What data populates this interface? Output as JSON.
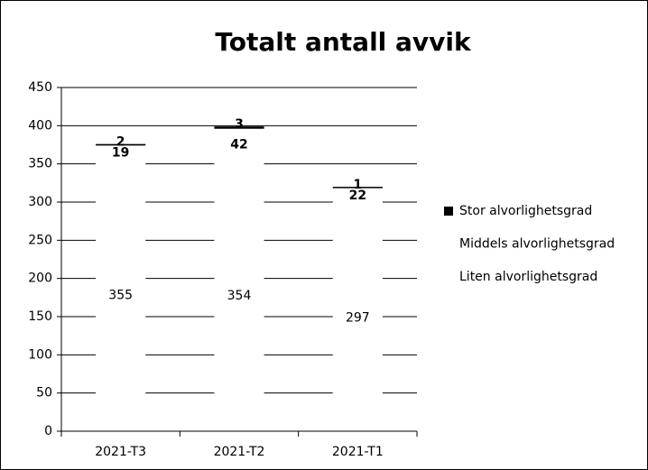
{
  "chart_data": {
    "type": "stacked_bar",
    "title": "Totalt antall avvik",
    "categories": [
      "2021-T3",
      "2021-T2",
      "2021-T1"
    ],
    "series": [
      {
        "name": "Liten alvorlighetsgrad",
        "color": "#ffffff",
        "values": [
          355,
          354,
          297
        ]
      },
      {
        "name": "Middels alvorlighetsgrad",
        "color": "#ffffff",
        "values": [
          19,
          42,
          22
        ]
      },
      {
        "name": "Stor alvorlighetsgrad",
        "color": "#000000",
        "values": [
          2,
          3,
          1
        ]
      }
    ],
    "ylim": [
      0,
      450
    ],
    "yticks": [
      0,
      50,
      100,
      150,
      200,
      250,
      300,
      350,
      400,
      450
    ],
    "grid": true,
    "legend": "right"
  }
}
